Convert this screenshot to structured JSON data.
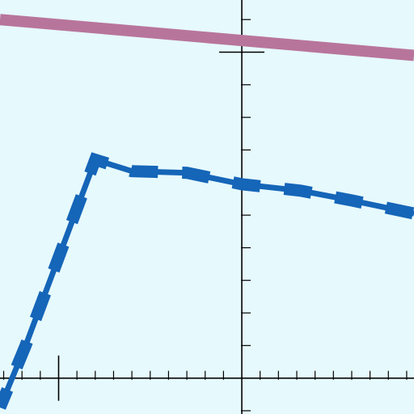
{
  "chart_data": {
    "type": "line",
    "title": "",
    "xlabel": "",
    "ylabel": "",
    "grid": false,
    "legend": "none",
    "background": "#E6F9FC",
    "axis_color": "#000000",
    "xlim": [
      -6.6,
      4.7
    ],
    "ylim": [
      -1.1,
      11.6
    ],
    "x_ticks": {
      "minor_step": 0.5,
      "major_at": [
        -5,
        0
      ]
    },
    "y_ticks": {
      "minor_step": 1,
      "major_at": [
        10
      ]
    },
    "series": [
      {
        "color": "#B8759B",
        "style": "solid",
        "points": [
          [
            -6.6,
            11.0
          ],
          [
            4.7,
            9.9
          ]
        ]
      },
      {
        "color": "#1565B8",
        "style": "dashed",
        "points": [
          [
            -6.6,
            -0.9
          ],
          [
            -5.9,
            1.0
          ],
          [
            -4.9,
            4.0
          ],
          [
            -4.0,
            6.7
          ],
          [
            -3.0,
            6.35
          ],
          [
            -1.5,
            6.3
          ],
          [
            0.0,
            5.95
          ],
          [
            1.6,
            5.75
          ],
          [
            3.0,
            5.45
          ],
          [
            4.7,
            5.05
          ]
        ]
      }
    ]
  }
}
